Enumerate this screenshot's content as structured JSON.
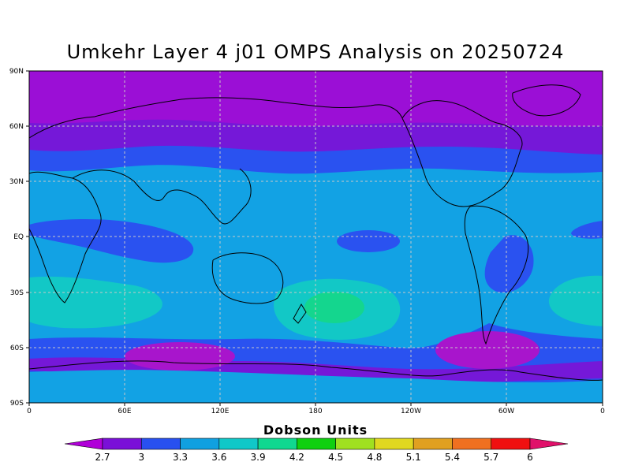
{
  "title": "Umkehr Layer 4 j01 OMPS Analysis on 20250724",
  "x_axis": {
    "ticks": [
      "0",
      "60E",
      "120E",
      "180",
      "120W",
      "60W",
      "0"
    ]
  },
  "y_axis": {
    "ticks": [
      "90N",
      "60N",
      "30N",
      "EQ",
      "30S",
      "60S",
      "90S"
    ]
  },
  "colorbar": {
    "title": "Dobson Units",
    "levels": [
      "2.7",
      "3",
      "3.3",
      "3.6",
      "3.9",
      "4.2",
      "4.5",
      "4.8",
      "5.1",
      "5.4",
      "5.7",
      "6"
    ],
    "colors": [
      "#b000d8",
      "#7a10d8",
      "#2850f0",
      "#10a0e0",
      "#10c8c8",
      "#10d890",
      "#10d010",
      "#a0e020",
      "#e0d820",
      "#e0a020",
      "#f07020",
      "#f01010",
      "#e0106a"
    ]
  },
  "palette": {
    "purple": "#9b0fd6",
    "violet": "#7518d8",
    "blue": "#2a52f0",
    "sky": "#12a2e4",
    "cyan": "#12c8c6",
    "teal": "#14d68e",
    "magenta": "#a815cc"
  },
  "grid": true
}
